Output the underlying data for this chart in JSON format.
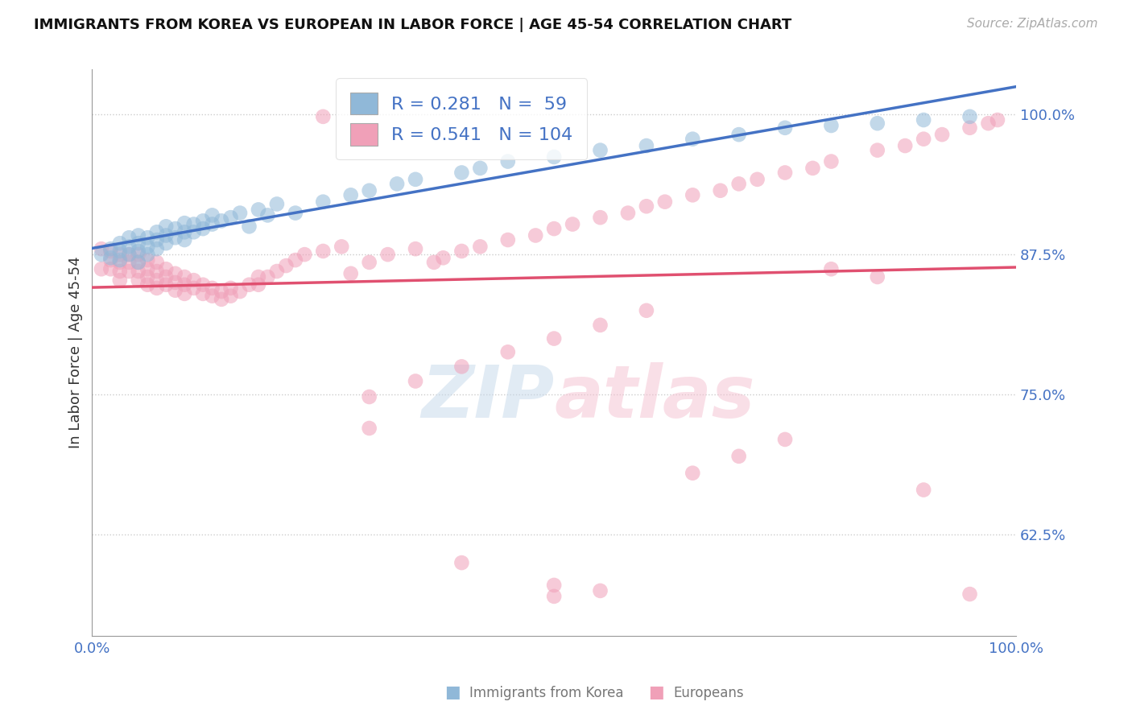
{
  "title": "IMMIGRANTS FROM KOREA VS EUROPEAN IN LABOR FORCE | AGE 45-54 CORRELATION CHART",
  "source": "Source: ZipAtlas.com",
  "ylabel": "In Labor Force | Age 45-54",
  "y_ticks": [
    0.625,
    0.75,
    0.875,
    1.0
  ],
  "y_tick_labels": [
    "62.5%",
    "75.0%",
    "87.5%",
    "100.0%"
  ],
  "x_range": [
    0.0,
    1.0
  ],
  "y_range": [
    0.535,
    1.04
  ],
  "korea_R": 0.281,
  "korea_N": 59,
  "euro_R": 0.541,
  "euro_N": 104,
  "korea_color": "#90b8d8",
  "euro_color": "#f0a0b8",
  "korea_line_color": "#4472c4",
  "euro_line_color": "#e05070",
  "watermark_text": "ZIPatlas",
  "legend_label_korea": "Immigrants from Korea",
  "legend_label_euro": "Europeans",
  "korea_x": [
    0.01,
    0.02,
    0.02,
    0.03,
    0.03,
    0.03,
    0.04,
    0.04,
    0.04,
    0.05,
    0.05,
    0.05,
    0.05,
    0.06,
    0.06,
    0.06,
    0.07,
    0.07,
    0.07,
    0.08,
    0.08,
    0.08,
    0.09,
    0.09,
    0.1,
    0.1,
    0.1,
    0.11,
    0.11,
    0.12,
    0.12,
    0.13,
    0.13,
    0.14,
    0.15,
    0.16,
    0.17,
    0.18,
    0.19,
    0.2,
    0.22,
    0.25,
    0.28,
    0.3,
    0.33,
    0.35,
    0.4,
    0.42,
    0.45,
    0.5,
    0.55,
    0.6,
    0.65,
    0.7,
    0.75,
    0.8,
    0.85,
    0.9,
    0.95
  ],
  "korea_y": [
    0.875,
    0.88,
    0.872,
    0.87,
    0.878,
    0.885,
    0.875,
    0.882,
    0.89,
    0.878,
    0.885,
    0.892,
    0.868,
    0.875,
    0.882,
    0.89,
    0.88,
    0.888,
    0.895,
    0.885,
    0.892,
    0.9,
    0.89,
    0.898,
    0.888,
    0.895,
    0.903,
    0.895,
    0.902,
    0.898,
    0.905,
    0.902,
    0.91,
    0.905,
    0.908,
    0.912,
    0.9,
    0.915,
    0.91,
    0.92,
    0.912,
    0.922,
    0.928,
    0.932,
    0.938,
    0.942,
    0.948,
    0.952,
    0.958,
    0.962,
    0.968,
    0.972,
    0.978,
    0.982,
    0.988,
    0.99,
    0.992,
    0.995,
    0.998
  ],
  "euro_x": [
    0.01,
    0.01,
    0.02,
    0.02,
    0.02,
    0.03,
    0.03,
    0.03,
    0.03,
    0.04,
    0.04,
    0.04,
    0.05,
    0.05,
    0.05,
    0.05,
    0.06,
    0.06,
    0.06,
    0.06,
    0.07,
    0.07,
    0.07,
    0.07,
    0.08,
    0.08,
    0.08,
    0.09,
    0.09,
    0.09,
    0.1,
    0.1,
    0.1,
    0.11,
    0.11,
    0.12,
    0.12,
    0.13,
    0.13,
    0.14,
    0.14,
    0.15,
    0.15,
    0.16,
    0.17,
    0.18,
    0.18,
    0.19,
    0.2,
    0.21,
    0.22,
    0.23,
    0.25,
    0.27,
    0.28,
    0.3,
    0.32,
    0.35,
    0.37,
    0.38,
    0.4,
    0.42,
    0.45,
    0.48,
    0.5,
    0.52,
    0.55,
    0.58,
    0.6,
    0.62,
    0.65,
    0.68,
    0.7,
    0.72,
    0.75,
    0.78,
    0.8,
    0.85,
    0.88,
    0.9,
    0.92,
    0.95,
    0.97,
    0.98,
    0.25,
    0.3,
    0.35,
    0.4,
    0.45,
    0.5,
    0.55,
    0.6,
    0.65,
    0.7,
    0.75,
    0.8,
    0.85,
    0.9,
    0.95,
    0.5,
    0.55,
    0.3,
    0.4,
    0.5
  ],
  "euro_y": [
    0.88,
    0.862,
    0.878,
    0.87,
    0.862,
    0.875,
    0.868,
    0.86,
    0.852,
    0.875,
    0.868,
    0.86,
    0.875,
    0.868,
    0.86,
    0.852,
    0.87,
    0.862,
    0.855,
    0.848,
    0.868,
    0.86,
    0.852,
    0.845,
    0.862,
    0.855,
    0.848,
    0.858,
    0.85,
    0.843,
    0.855,
    0.848,
    0.84,
    0.852,
    0.845,
    0.848,
    0.84,
    0.845,
    0.838,
    0.842,
    0.835,
    0.845,
    0.838,
    0.842,
    0.848,
    0.855,
    0.848,
    0.855,
    0.86,
    0.865,
    0.87,
    0.875,
    0.878,
    0.882,
    0.858,
    0.868,
    0.875,
    0.88,
    0.868,
    0.872,
    0.878,
    0.882,
    0.888,
    0.892,
    0.898,
    0.902,
    0.908,
    0.912,
    0.918,
    0.922,
    0.928,
    0.932,
    0.938,
    0.942,
    0.948,
    0.952,
    0.958,
    0.968,
    0.972,
    0.978,
    0.982,
    0.988,
    0.992,
    0.995,
    0.998,
    0.748,
    0.762,
    0.775,
    0.788,
    0.8,
    0.812,
    0.825,
    0.68,
    0.695,
    0.71,
    0.862,
    0.855,
    0.665,
    0.572,
    0.57,
    0.575,
    0.72,
    0.6,
    0.58
  ]
}
